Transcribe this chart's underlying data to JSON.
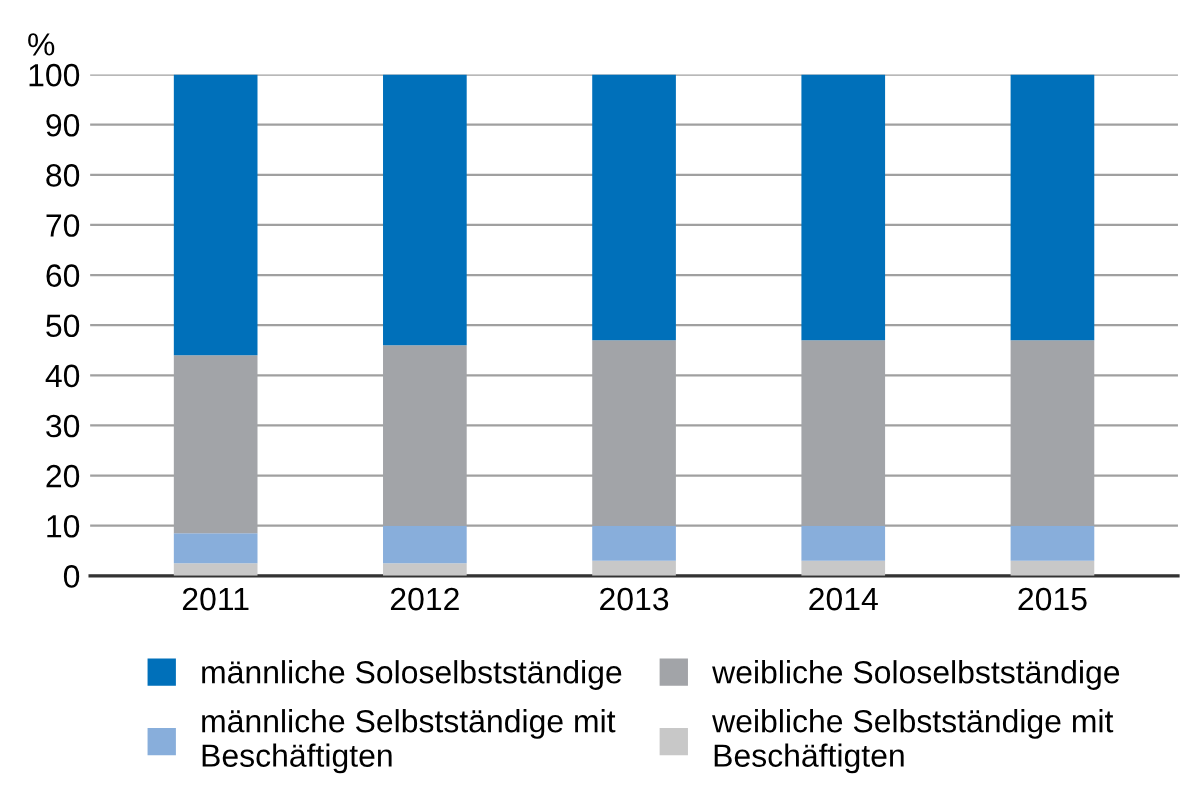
{
  "chart_data": {
    "type": "bar",
    "stacked": true,
    "ylabel": "%",
    "categories": [
      "2011",
      "2012",
      "2013",
      "2014",
      "2015"
    ],
    "series": [
      {
        "name": "weibliche Selbstständige mit Beschäftigten",
        "color": "#c8c8c8",
        "values": [
          2.5,
          2.5,
          3,
          3,
          3
        ]
      },
      {
        "name": "männliche Selbstständige mit Beschäftigten",
        "color": "#88aedb",
        "values": [
          6,
          7.5,
          7,
          7,
          7
        ]
      },
      {
        "name": "weibliche Soloselbstständige",
        "color": "#a2a4a8",
        "values": [
          35.5,
          36,
          37,
          37,
          37
        ]
      },
      {
        "name": "männliche Soloselbstständige",
        "color": "#0070ba",
        "values": [
          56,
          54,
          53,
          53,
          53
        ]
      }
    ],
    "ylim": [
      0,
      100
    ],
    "yticks": [
      0,
      10,
      20,
      30,
      40,
      50,
      60,
      70,
      80,
      90,
      100
    ],
    "grid": "y",
    "legend": "bottom"
  }
}
